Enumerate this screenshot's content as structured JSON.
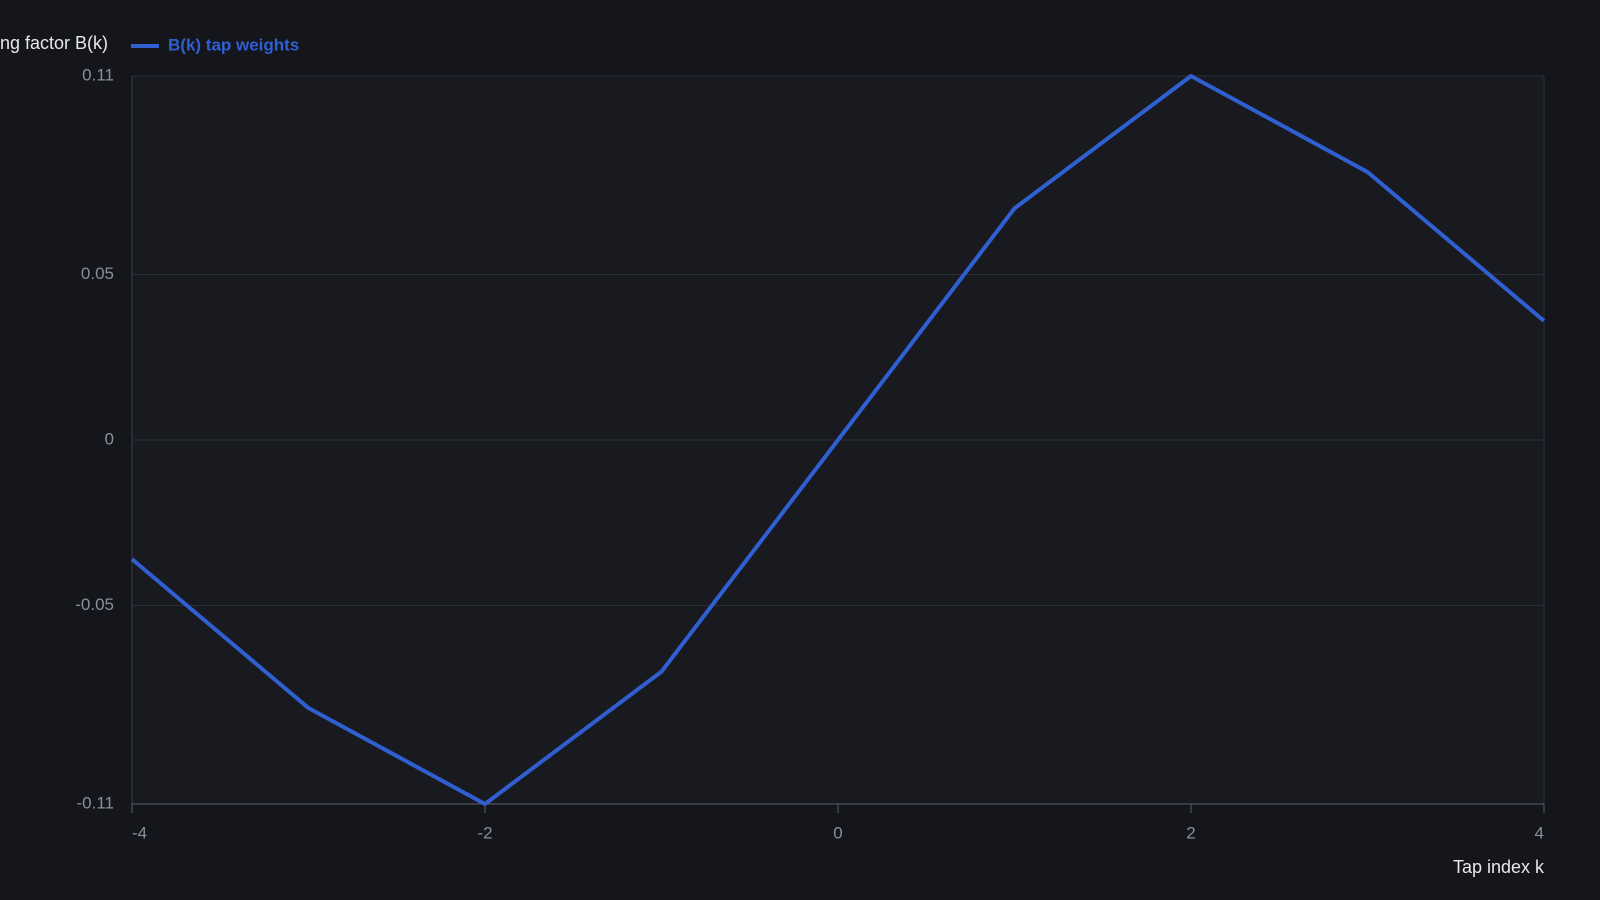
{
  "chart_data": {
    "type": "line",
    "y_label": "ng factor B(k)",
    "x_label": "Tap index k",
    "x": [
      -4,
      -3,
      -2,
      -1,
      0,
      1,
      2,
      3,
      4
    ],
    "series": [
      {
        "name": "B(k) tap weights",
        "color": "#2f5fd0",
        "values": [
          -0.036,
          -0.081,
          -0.11,
          -0.07,
          0,
          0.07,
          0.11,
          0.081,
          0.036
        ]
      }
    ],
    "xlim": [
      -4,
      4
    ],
    "xticks": [
      -4,
      -2,
      0,
      2,
      4
    ],
    "ylim": [
      -0.11,
      0.11
    ],
    "yticks": [
      -0.11,
      -0.05,
      0,
      0.05,
      0.11
    ],
    "grid": true
  }
}
